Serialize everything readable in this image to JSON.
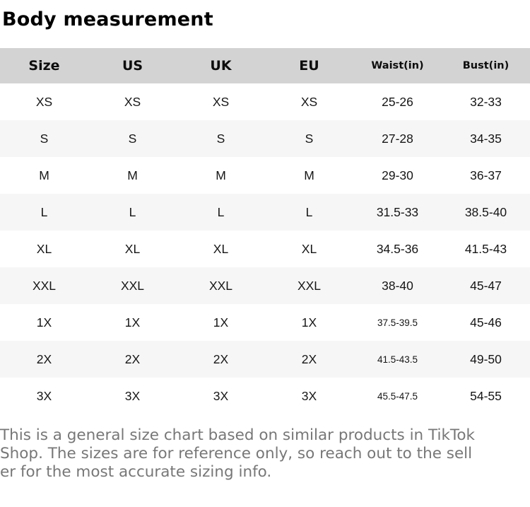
{
  "title": "Body measurement",
  "table": {
    "headers": [
      "Size",
      "US",
      "UK",
      "EU",
      "Waist(in)",
      "Bust(in)"
    ],
    "rows": [
      [
        "XS",
        "XS",
        "XS",
        "XS",
        "25-26",
        "32-33"
      ],
      [
        "S",
        "S",
        "S",
        "S",
        "27-28",
        "34-35"
      ],
      [
        "M",
        "M",
        "M",
        "M",
        "29-30",
        "36-37"
      ],
      [
        "L",
        "L",
        "L",
        "L",
        "31.5-33",
        "38.5-40"
      ],
      [
        "XL",
        "XL",
        "XL",
        "XL",
        "34.5-36",
        "41.5-43"
      ],
      [
        "XXL",
        "XXL",
        "XXL",
        "XXL",
        "38-40",
        "45-47"
      ],
      [
        "1X",
        "1X",
        "1X",
        "1X",
        "37.5-39.5",
        "45-46"
      ],
      [
        "2X",
        "2X",
        "2X",
        "2X",
        "41.5-43.5",
        "49-50"
      ],
      [
        "3X",
        "3X",
        "3X",
        "3X",
        "45.5-47.5",
        "54-55"
      ]
    ]
  },
  "footer": {
    "text": "This is a general size chart based on similar products in TikTok Shop. The sizes are for reference only, so reach out to the seller for the most accurate sizing info.",
    "lines": [
      "This is a general size chart based on similar products in TikTok",
      "Shop. The sizes are for reference only, so reach out to the sell",
      "er for the most accurate sizing info."
    ]
  },
  "colors": {
    "header_bg": "#d3d3d3",
    "alt_row_bg": "#f6f6f7",
    "body_text": "#121212",
    "note_text": "#777777"
  }
}
